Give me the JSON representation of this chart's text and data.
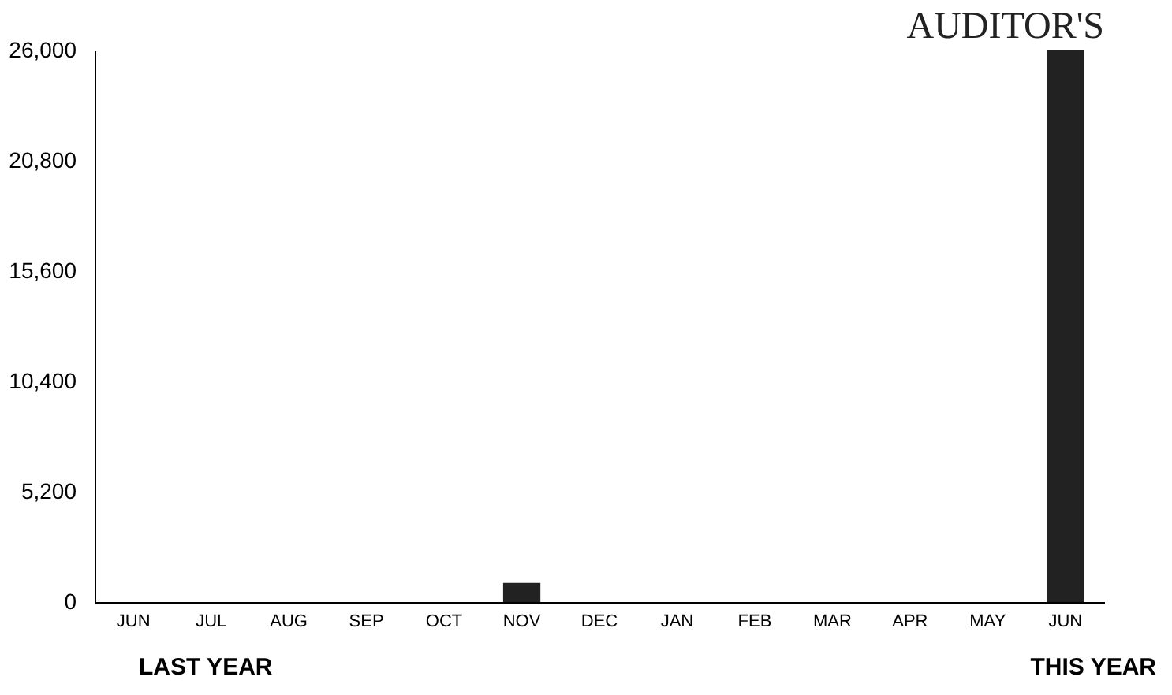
{
  "chart_data": {
    "type": "bar",
    "title": "AUDITOR'S",
    "categories": [
      "JUN",
      "JUL",
      "AUG",
      "SEP",
      "OCT",
      "NOV",
      "DEC",
      "JAN",
      "FEB",
      "MAR",
      "APR",
      "MAY",
      "JUN"
    ],
    "values": [
      0,
      0,
      0,
      0,
      0,
      900,
      0,
      0,
      0,
      0,
      0,
      0,
      26000
    ],
    "color": "#222222",
    "ylim": [
      0,
      26000
    ],
    "yticks": [
      0,
      {
        "value": 5200,
        "label": "5,200"
      },
      {
        "value": 10400,
        "label": "10,400"
      },
      {
        "value": 15600,
        "label": "15,600"
      },
      {
        "value": 20800,
        "label": "20,800"
      },
      {
        "value": 26000,
        "label": "26,000"
      }
    ],
    "grid": false,
    "annotations": [
      "LAST YEAR",
      "THIS YEAR"
    ]
  }
}
